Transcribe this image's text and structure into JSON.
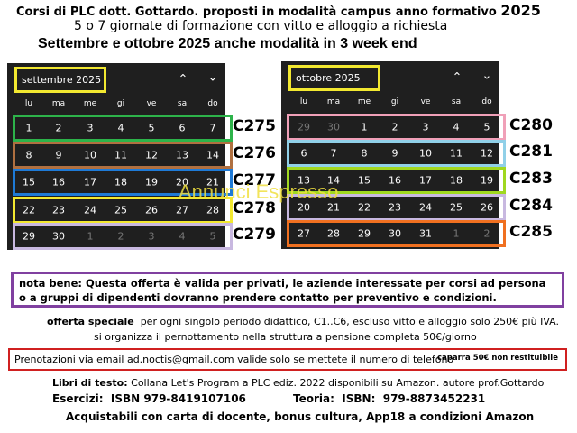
{
  "header": {
    "line1": "Corsi di PLC dott. Gottardo. proposti in modalità campus anno formativo",
    "line1_year": "2025",
    "line2": "5 o 7 giornate di formazione con vitto e alloggio a richiesta",
    "line3_a": "Settembre e ottobre",
    "line3_year": "2025",
    "line3_b": "anche modalità in 3 week end"
  },
  "calendars": [
    {
      "month": "settembre 2025",
      "weekdays": [
        "lu",
        "ma",
        "me",
        "gi",
        "ve",
        "sa",
        "do"
      ],
      "weeks": [
        {
          "days": [
            1,
            2,
            3,
            4,
            5,
            6,
            7
          ],
          "label": "C275",
          "color": "#2db34a"
        },
        {
          "days": [
            8,
            9,
            10,
            11,
            12,
            13,
            14
          ],
          "label": "C276",
          "color": "#b07040"
        },
        {
          "days": [
            15,
            16,
            17,
            18,
            19,
            20,
            21
          ],
          "label": "C277",
          "color": "#1e7ad6"
        },
        {
          "days": [
            22,
            23,
            24,
            25,
            26,
            27,
            28
          ],
          "label": "C278",
          "color": "#f2e830"
        },
        {
          "days": [
            29,
            30,
            1,
            2,
            3,
            4,
            5
          ],
          "label": "C279",
          "color": "#c8b8e0"
        }
      ]
    },
    {
      "month": "ottobre 2025",
      "weekdays": [
        "lu",
        "ma",
        "me",
        "gi",
        "ve",
        "sa",
        "do"
      ],
      "weeks": [
        {
          "days": [
            29,
            30,
            1,
            2,
            3,
            4,
            5
          ],
          "label": "C280",
          "color": "#f0a0b8"
        },
        {
          "days": [
            6,
            7,
            8,
            9,
            10,
            11,
            12
          ],
          "label": "C281",
          "color": "#90d0e8"
        },
        {
          "days": [
            13,
            14,
            15,
            16,
            17,
            18,
            19
          ],
          "label": "C283",
          "color": "#a0d820"
        },
        {
          "days": [
            20,
            21,
            22,
            23,
            24,
            25,
            26
          ],
          "label": "C284",
          "color": "#c8b8e0"
        },
        {
          "days": [
            27,
            28,
            29,
            30,
            31,
            1,
            2
          ],
          "label": "C285",
          "color": "#f07020"
        }
      ]
    }
  ],
  "watermark": "Annunci Espresso",
  "note": "nota bene: Questa offerta è valida per privati, le aziende interessate per corsi ad persona o a gruppi di dipendenti dovranno prendere contatto per preventivo e condizioni.",
  "offer": {
    "title": "offerta speciale",
    "text": "per ogni singolo periodo didattico, C1..C6, escluso vitto e alloggio solo 250€ più IVA.",
    "lodging": "si organizza il pernottamento nella struttura a pensione completa 50€/giorno"
  },
  "booking": {
    "text": "Prenotazioni via email ad.noctis@gmail.com valide solo se mettete il numero di telefono",
    "deposit": "caparra 50€ non restituibile"
  },
  "books": {
    "label": "Libri di testo:",
    "text": "Collana Let's Program a PLC ediz. 2022 disponibili su Amazon. autore prof.Gottardo",
    "ex_label": "Esercizi:",
    "ex_isbn": "ISBN 979-8419107106",
    "th_label": "Teoria:",
    "th_isbn_label": "ISBN:",
    "th_isbn": "979-8873452231",
    "purchase": "Acquistabili con carta di docente, bonus cultura, App18 a condizioni Amazon"
  }
}
